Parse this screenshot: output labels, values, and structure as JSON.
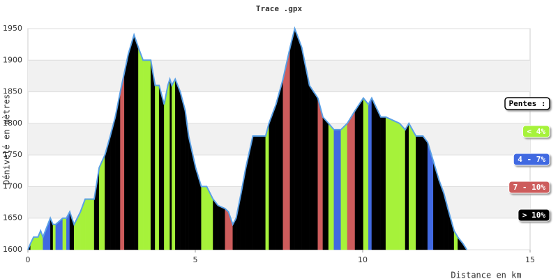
{
  "chart_data": {
    "type": "slope-profile",
    "title": "Trace .gpx",
    "x_label": "Distance en km",
    "y_label": "Dénivelé en mètres",
    "x": [
      0,
      0.08,
      0.17,
      0.3,
      0.38,
      0.45,
      0.67,
      0.75,
      0.83,
      1.04,
      1.15,
      1.25,
      1.38,
      1.57,
      1.71,
      1.98,
      2.13,
      2.3,
      2.46,
      2.61,
      2.76,
      2.88,
      3.0,
      3.17,
      3.3,
      3.44,
      3.59,
      3.67,
      3.8,
      3.92,
      4.07,
      4.18,
      4.24,
      4.3,
      4.4,
      4.55,
      4.7,
      4.8,
      5.01,
      5.18,
      5.34,
      5.53,
      5.68,
      5.89,
      5.99,
      6.12,
      6.22,
      6.37,
      6.51,
      6.72,
      7.1,
      7.2,
      7.41,
      7.62,
      7.83,
      7.97,
      8.18,
      8.41,
      8.66,
      8.81,
      8.98,
      9.14,
      9.35,
      9.54,
      9.77,
      10.02,
      10.17,
      10.27,
      10.54,
      10.69,
      11.1,
      11.27,
      11.38,
      11.59,
      11.8,
      11.94,
      12.11,
      12.28,
      12.42,
      12.57,
      12.73,
      12.84,
      12.99,
      13.11
    ],
    "values": [
      1600,
      1610,
      1620,
      1620,
      1630,
      1620,
      1650,
      1640,
      1640,
      1650,
      1650,
      1660,
      1640,
      1660,
      1680,
      1680,
      1730,
      1750,
      1780,
      1810,
      1850,
      1880,
      1910,
      1940,
      1920,
      1900,
      1900,
      1900,
      1860,
      1860,
      1830,
      1860,
      1870,
      1860,
      1870,
      1850,
      1820,
      1780,
      1730,
      1700,
      1700,
      1680,
      1670,
      1665,
      1660,
      1640,
      1650,
      1690,
      1730,
      1780,
      1780,
      1800,
      1830,
      1870,
      1920,
      1950,
      1920,
      1860,
      1840,
      1810,
      1800,
      1790,
      1790,
      1800,
      1820,
      1840,
      1830,
      1840,
      1810,
      1810,
      1800,
      1790,
      1800,
      1780,
      1780,
      1770,
      1740,
      1710,
      1690,
      1660,
      1630,
      1620,
      1610,
      1600
    ],
    "segment_classes": [
      3,
      0,
      0,
      0,
      0,
      1,
      3,
      0,
      1,
      0,
      1,
      3,
      0,
      0,
      0,
      3,
      0,
      3,
      3,
      3,
      2,
      3,
      3,
      3,
      0,
      0,
      0,
      3,
      0,
      3,
      0,
      0,
      3,
      0,
      3,
      3,
      3,
      3,
      3,
      0,
      0,
      3,
      3,
      2,
      2,
      3,
      3,
      3,
      3,
      3,
      0,
      3,
      3,
      2,
      3,
      3,
      3,
      3,
      2,
      3,
      0,
      1,
      0,
      2,
      3,
      0,
      1,
      3,
      3,
      0,
      0,
      3,
      0,
      3,
      3,
      1,
      3,
      3,
      3,
      3,
      0,
      3,
      3
    ],
    "line_color": "#5aa0e6",
    "legend": {
      "title": "Pentes :",
      "items": [
        {
          "name": "< 4%",
          "color": "#a6f23a"
        },
        {
          "name": "4 - 7%",
          "color": "#4169e1"
        },
        {
          "name": "7 - 10%",
          "color": "#cd5c5c"
        },
        {
          "name": "> 10%",
          "color": "#000000"
        }
      ]
    },
    "xlim": [
      0,
      15
    ],
    "xticks": [
      0,
      5,
      10,
      15
    ],
    "ylim": [
      1600,
      1950
    ],
    "yticks": [
      1600,
      1650,
      1700,
      1750,
      1800,
      1850,
      1900,
      1950
    ],
    "grid": true
  }
}
